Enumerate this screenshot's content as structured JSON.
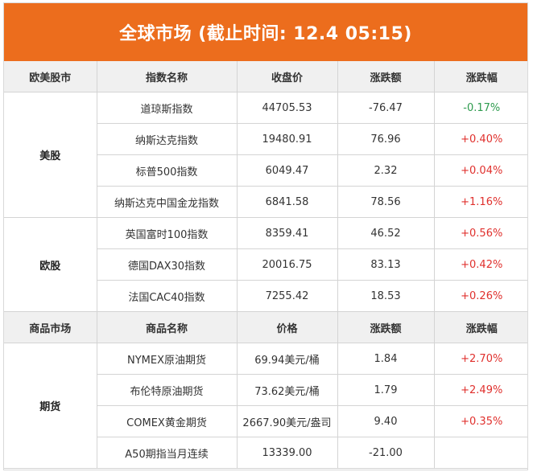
{
  "title": "全球市场 (截止时间: 12.4 05:15)",
  "colors": {
    "banner": "#ec6d1d",
    "up": "#e0302d",
    "down": "#2e9b4e",
    "header_bg": "#f0f0f0"
  },
  "stock_header": [
    "欧美股市",
    "指数名称",
    "收盘价",
    "涨跌额",
    "涨跌幅"
  ],
  "us_group": "美股",
  "us_rows": [
    {
      "name": "道琼斯指数",
      "close": "44705.53",
      "change": "-76.47",
      "pct": "-0.17%",
      "dir": "down"
    },
    {
      "name": "纳斯达克指数",
      "close": "19480.91",
      "change": "76.96",
      "pct": "+0.40%",
      "dir": "up"
    },
    {
      "name": "标普500指数",
      "close": "6049.47",
      "change": "2.32",
      "pct": "+0.04%",
      "dir": "up"
    },
    {
      "name": "纳斯达克中国金龙指数",
      "close": "6841.58",
      "change": "78.56",
      "pct": "+1.16%",
      "dir": "up"
    }
  ],
  "eu_group": "欧股",
  "eu_rows": [
    {
      "name": "英国富时100指数",
      "close": "8359.41",
      "change": "46.52",
      "pct": "+0.56%",
      "dir": "up"
    },
    {
      "name": "德国DAX30指数",
      "close": "20016.75",
      "change": "83.13",
      "pct": "+0.42%",
      "dir": "up"
    },
    {
      "name": "法国CAC40指数",
      "close": "7255.42",
      "change": "18.53",
      "pct": "+0.26%",
      "dir": "up"
    }
  ],
  "commodity_header": [
    "商品市场",
    "商品名称",
    "价格",
    "涨跌额",
    "涨跌幅"
  ],
  "futures_group": "期货",
  "futures_rows": [
    {
      "name": "NYMEX原油期货",
      "close": "69.94美元/桶",
      "change": "1.84",
      "pct": "+2.70%",
      "dir": "up"
    },
    {
      "name": "布伦特原油期货",
      "close": "73.62美元/桶",
      "change": "1.79",
      "pct": "+2.49%",
      "dir": "up"
    },
    {
      "name": "COMEX黄金期货",
      "close": "2667.90美元/盎司",
      "change": "9.40",
      "pct": "+0.35%",
      "dir": "up"
    },
    {
      "name": "A50期指当月连续",
      "close": "13339.00",
      "change": "-21.00",
      "pct": "",
      "dir": "down"
    }
  ]
}
